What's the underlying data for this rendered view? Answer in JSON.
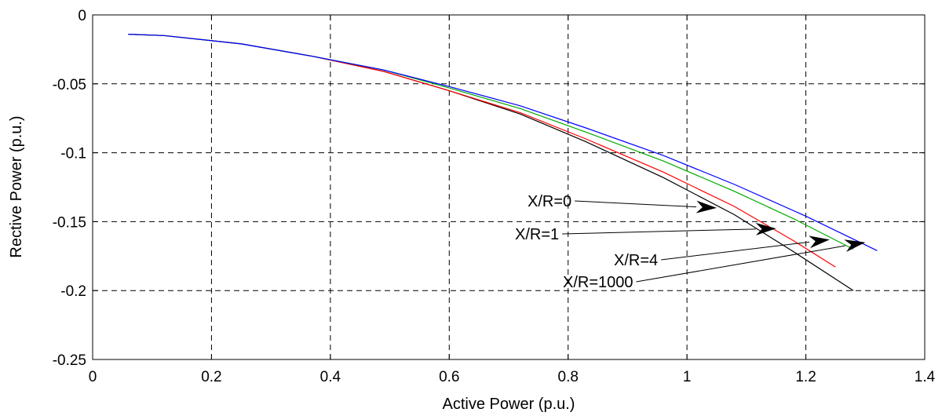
{
  "chart_data": {
    "type": "line",
    "title": "",
    "xlabel": "Active Power (p.u.)",
    "ylabel": "Rective Power (p.u.)",
    "xlim": [
      0,
      1.4
    ],
    "ylim": [
      -0.25,
      0
    ],
    "xticks": [
      0,
      0.2,
      0.4,
      0.6,
      0.8,
      1,
      1.2,
      1.4
    ],
    "xtick_labels": [
      "0",
      "0.2",
      "0.4",
      "0.6",
      "0.8",
      "1",
      "1.2",
      "1.4"
    ],
    "yticks": [
      0,
      -0.05,
      -0.1,
      -0.15,
      -0.2,
      -0.25
    ],
    "ytick_labels": [
      "0",
      "-0.05",
      "-0.1",
      "-0.15",
      "-0.2",
      "-0.25"
    ],
    "grid": true,
    "series": [
      {
        "name": "X/R=0",
        "color": "#000000",
        "x": [
          0.06,
          0.12,
          0.25,
          0.37,
          0.49,
          0.6,
          0.72,
          0.83,
          0.96,
          1.08,
          1.18,
          1.28
        ],
        "y": [
          -0.014,
          -0.015,
          -0.021,
          -0.03,
          -0.041,
          -0.055,
          -0.072,
          -0.092,
          -0.118,
          -0.145,
          -0.172,
          -0.2
        ]
      },
      {
        "name": "X/R=1",
        "color": "#ff0000",
        "x": [
          0.06,
          0.12,
          0.25,
          0.37,
          0.49,
          0.6,
          0.72,
          0.83,
          0.96,
          1.08,
          1.18,
          1.25
        ],
        "y": [
          -0.014,
          -0.015,
          -0.021,
          -0.03,
          -0.041,
          -0.055,
          -0.071,
          -0.09,
          -0.114,
          -0.139,
          -0.164,
          -0.183
        ]
      },
      {
        "name": "X/R=4",
        "color": "#00aa00",
        "x": [
          0.06,
          0.12,
          0.25,
          0.37,
          0.49,
          0.6,
          0.72,
          0.83,
          0.96,
          1.08,
          1.18,
          1.28
        ],
        "y": [
          -0.014,
          -0.015,
          -0.021,
          -0.03,
          -0.04,
          -0.053,
          -0.068,
          -0.085,
          -0.106,
          -0.128,
          -0.148,
          -0.17
        ]
      },
      {
        "name": "X/R=1000",
        "color": "#0000ff",
        "x": [
          0.06,
          0.12,
          0.25,
          0.37,
          0.49,
          0.6,
          0.72,
          0.83,
          0.96,
          1.08,
          1.2,
          1.32
        ],
        "y": [
          -0.014,
          -0.015,
          -0.021,
          -0.03,
          -0.04,
          -0.052,
          -0.066,
          -0.082,
          -0.102,
          -0.123,
          -0.146,
          -0.171
        ]
      }
    ],
    "annotations": [
      {
        "text": "X/R=0",
        "arrow_tip": [
          1.05,
          -0.14
        ]
      },
      {
        "text": "X/R=1",
        "arrow_tip": [
          1.15,
          -0.155
        ]
      },
      {
        "text": "X/R=4",
        "arrow_tip": [
          1.24,
          -0.163
        ]
      },
      {
        "text": "X/R=1000",
        "arrow_tip": [
          1.3,
          -0.165
        ]
      }
    ]
  }
}
